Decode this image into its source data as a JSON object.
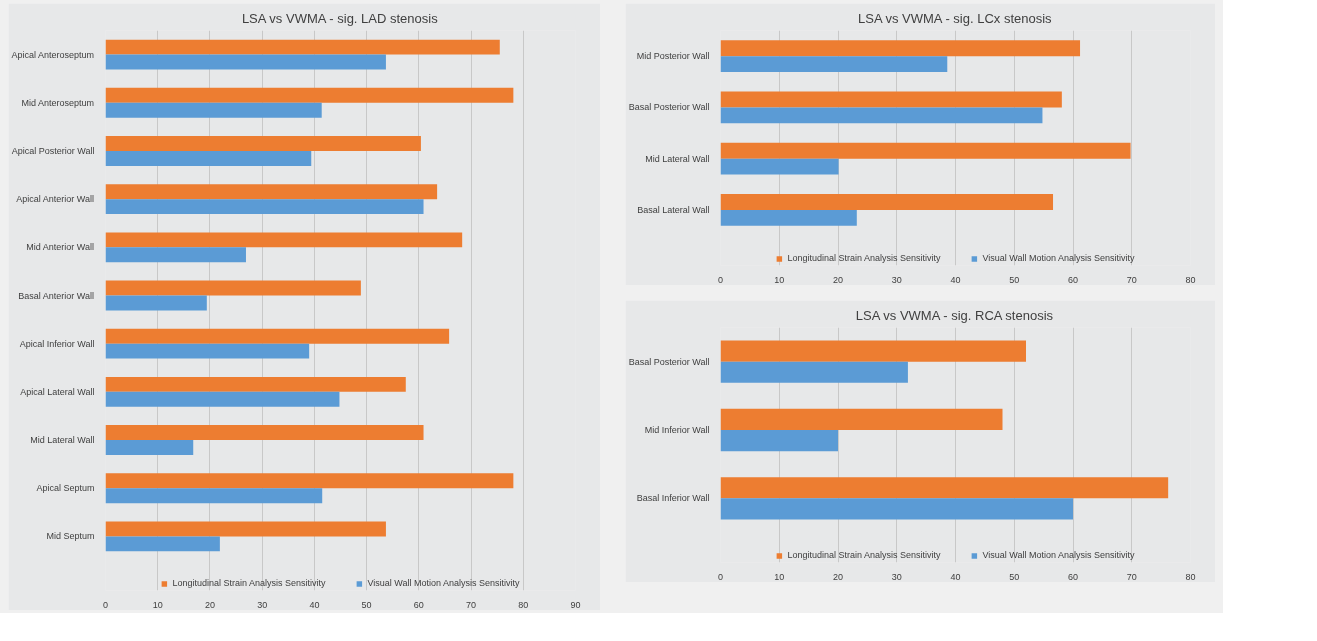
{
  "chart_data": [
    {
      "type": "bar",
      "orientation": "horizontal",
      "title": "LSA vs VWMA - sig. LAD stenosis",
      "categories": [
        "Apical Anteroseptum",
        "Mid Anteroseptum",
        "Apical Posterior Wall",
        "Apical Anterior Wall",
        "Mid Anterior Wall",
        "Basal Anterior Wall",
        "Apical Inferior Wall",
        "Apical Lateral Wall",
        "Mid Lateral Wall",
        "Apical Septum",
        "Mid Septum"
      ],
      "series": [
        {
          "name": "Longitudinal Strain Analysis Sensitivity",
          "color": "#ed7d31",
          "values": [
            75.5,
            78.1,
            60.4,
            63.5,
            68.3,
            48.9,
            65.8,
            57.5,
            60.9,
            78.1,
            53.7
          ]
        },
        {
          "name": "Visual Wall Motion Analysis Sensitivity",
          "color": "#5b9bd5",
          "values": [
            53.7,
            41.4,
            39.4,
            60.9,
            26.9,
            19.4,
            39.0,
            44.8,
            16.8,
            41.5,
            21.9
          ]
        }
      ],
      "xlim": [
        0,
        90
      ],
      "xticks": [
        0,
        10,
        20,
        30,
        40,
        50,
        60,
        70,
        80,
        90
      ],
      "grid": "x",
      "legend": "bottom"
    },
    {
      "type": "bar",
      "orientation": "horizontal",
      "title": "LSA vs VWMA - sig. LCx stenosis",
      "categories": [
        "Mid Posterior Wall",
        "Basal Posterior Wall",
        "Mid Lateral Wall",
        "Basal Lateral Wall"
      ],
      "series": [
        {
          "name": "Longitudinal Strain Analysis Sensitivity",
          "color": "#ed7d31",
          "values": [
            61.2,
            58.1,
            69.8,
            56.6
          ]
        },
        {
          "name": "Visual Wall Motion Analysis Sensitivity",
          "color": "#5b9bd5",
          "values": [
            38.6,
            54.8,
            20.1,
            23.2
          ]
        }
      ],
      "xlim": [
        0,
        80
      ],
      "xticks": [
        0,
        10,
        20,
        30,
        40,
        50,
        60,
        70,
        80
      ],
      "grid": "x",
      "legend": "bottom"
    },
    {
      "type": "bar",
      "orientation": "horizontal",
      "title": "LSA vs VWMA - sig. RCA stenosis",
      "categories": [
        "Basal Posterior Wall",
        "Mid Inferior Wall",
        "Basal Inferior Wall"
      ],
      "series": [
        {
          "name": "Longitudinal Strain Analysis Sensitivity",
          "color": "#ed7d31",
          "values": [
            52.0,
            48.0,
            76.2
          ]
        },
        {
          "name": "Visual Wall Motion Analysis Sensitivity",
          "color": "#5b9bd5",
          "values": [
            31.9,
            20.0,
            60.0
          ]
        }
      ],
      "xlim": [
        0,
        80
      ],
      "xticks": [
        0,
        10,
        20,
        30,
        40,
        50,
        60,
        70,
        80
      ],
      "grid": "x",
      "legend": "bottom"
    }
  ]
}
